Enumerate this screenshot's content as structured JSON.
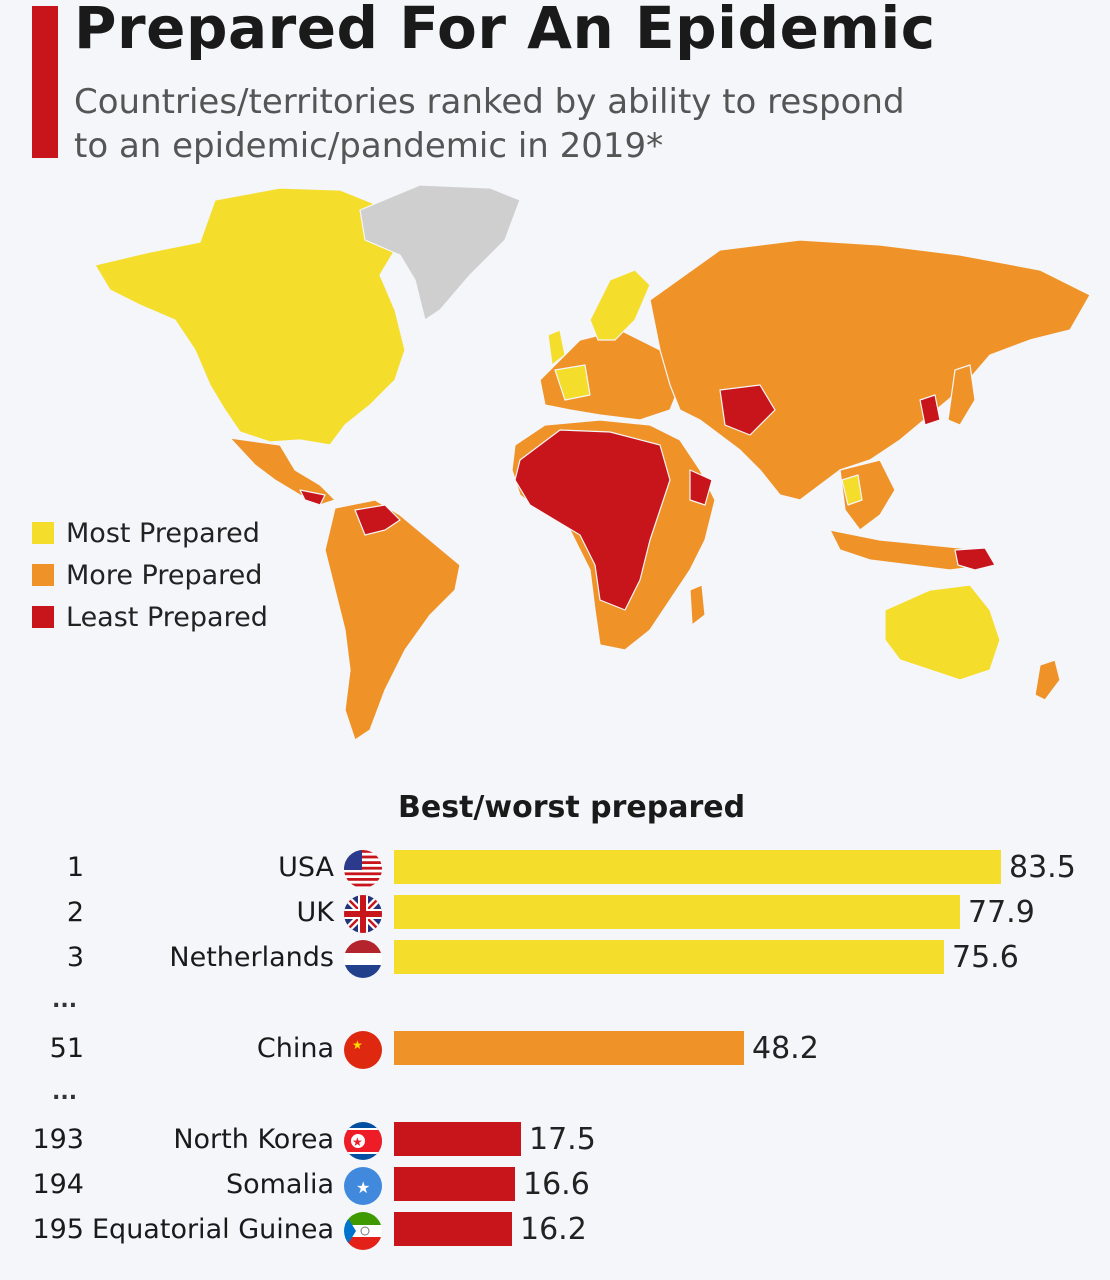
{
  "header": {
    "title": "Prepared For An Epidemic",
    "subtitle": "Countries/territories ranked by ability to respond to an epidemic/pandemic in 2019*"
  },
  "colors": {
    "most": "#f5dd2b",
    "more": "#ef9328",
    "least": "#c8151b",
    "no_data": "#cfcfcf",
    "accent": "#c8151b"
  },
  "legend": [
    {
      "label": "Most Prepared",
      "color": "#f5dd2b"
    },
    {
      "label": "More Prepared",
      "color": "#ef9328"
    },
    {
      "label": "Least Prepared",
      "color": "#c8151b"
    }
  ],
  "chart_data": {
    "type": "bar",
    "title": "Best/worst prepared",
    "orientation": "horizontal",
    "xlim": [
      0,
      83.5
    ],
    "rows": [
      {
        "rank": "1",
        "country": "USA",
        "value": 83.5,
        "label": "83.5",
        "category": "most",
        "flag": "usa-flag-icon"
      },
      {
        "rank": "2",
        "country": "UK",
        "value": 77.9,
        "label": "77.9",
        "category": "most",
        "flag": "uk-flag-icon"
      },
      {
        "rank": "3",
        "country": "Netherlands",
        "value": 75.6,
        "label": "75.6",
        "category": "most",
        "flag": "netherlands-flag-icon"
      },
      {
        "rank": "51",
        "country": "China",
        "value": 48.2,
        "label": "48.2",
        "category": "more",
        "flag": "china-flag-icon"
      },
      {
        "rank": "193",
        "country": "North Korea",
        "value": 17.5,
        "label": "17.5",
        "category": "least",
        "flag": "north-korea-flag-icon"
      },
      {
        "rank": "194",
        "country": "Somalia",
        "value": 16.6,
        "label": "16.6",
        "category": "least",
        "flag": "somalia-flag-icon"
      },
      {
        "rank": "195",
        "country": "Equatorial Guinea",
        "value": 16.2,
        "label": "16.2",
        "category": "least",
        "flag": "equatorial-guinea-flag-icon"
      }
    ],
    "gap_marker": "..."
  }
}
